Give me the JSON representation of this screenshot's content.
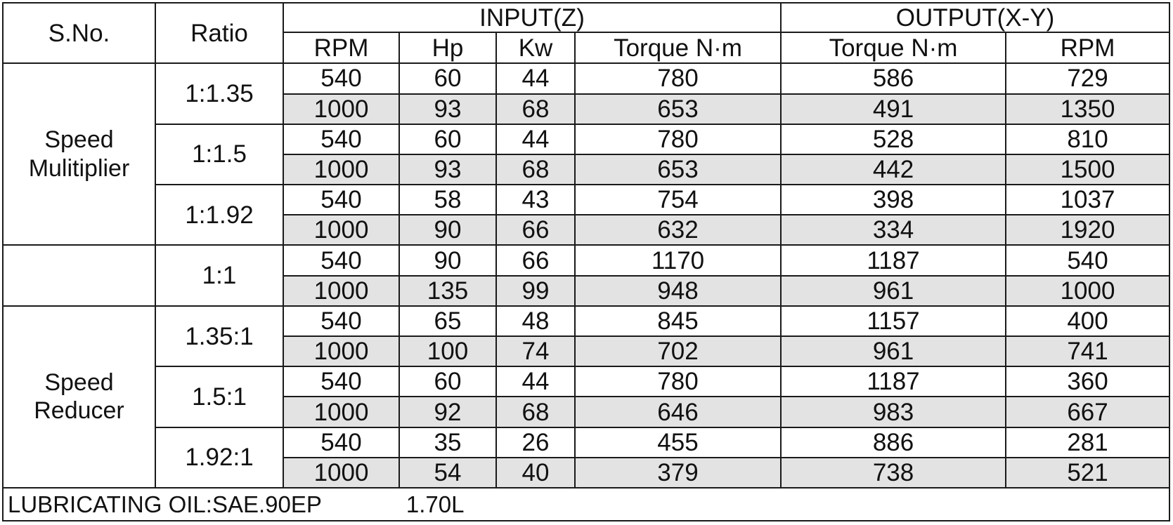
{
  "headers": {
    "sno": "S.No.",
    "ratio": "Ratio",
    "input_group": "INPUT(Z)",
    "output_group": "OUTPUT(X-Y)",
    "input_rpm": "RPM",
    "input_hp": "Hp",
    "input_kw": "Kw",
    "input_torque": "Torque N·m",
    "output_torque": "Torque N·m",
    "output_rpm": "RPM"
  },
  "groups": [
    {
      "line1": "Speed",
      "line2": "Mulitiplier",
      "ratios": [
        {
          "ratio": "1:1.35",
          "rows": [
            {
              "rpm": "540",
              "hp": "60",
              "kw": "44",
              "torque_in": "780",
              "torque_out": "586",
              "rpm_out": "729"
            },
            {
              "rpm": "1000",
              "hp": "93",
              "kw": "68",
              "torque_in": "653",
              "torque_out": "491",
              "rpm_out": "1350"
            }
          ]
        },
        {
          "ratio": "1:1.5",
          "rows": [
            {
              "rpm": "540",
              "hp": "60",
              "kw": "44",
              "torque_in": "780",
              "torque_out": "528",
              "rpm_out": "810"
            },
            {
              "rpm": "1000",
              "hp": "93",
              "kw": "68",
              "torque_in": "653",
              "torque_out": "442",
              "rpm_out": "1500"
            }
          ]
        },
        {
          "ratio": "1:1.92",
          "rows": [
            {
              "rpm": "540",
              "hp": "58",
              "kw": "43",
              "torque_in": "754",
              "torque_out": "398",
              "rpm_out": "1037"
            },
            {
              "rpm": "1000",
              "hp": "90",
              "kw": "66",
              "torque_in": "632",
              "torque_out": "334",
              "rpm_out": "1920"
            }
          ]
        }
      ]
    },
    {
      "line1": "",
      "line2": "",
      "ratios": [
        {
          "ratio": "1:1",
          "rows": [
            {
              "rpm": "540",
              "hp": "90",
              "kw": "66",
              "torque_in": "1170",
              "torque_out": "1187",
              "rpm_out": "540"
            },
            {
              "rpm": "1000",
              "hp": "135",
              "kw": "99",
              "torque_in": "948",
              "torque_out": "961",
              "rpm_out": "1000"
            }
          ]
        }
      ]
    },
    {
      "line1": "Speed",
      "line2": "Reducer",
      "ratios": [
        {
          "ratio": "1.35:1",
          "rows": [
            {
              "rpm": "540",
              "hp": "65",
              "kw": "48",
              "torque_in": "845",
              "torque_out": "1157",
              "rpm_out": "400"
            },
            {
              "rpm": "1000",
              "hp": "100",
              "kw": "74",
              "torque_in": "702",
              "torque_out": "961",
              "rpm_out": "741"
            }
          ]
        },
        {
          "ratio": "1.5:1",
          "rows": [
            {
              "rpm": "540",
              "hp": "60",
              "kw": "44",
              "torque_in": "780",
              "torque_out": "1187",
              "rpm_out": "360"
            },
            {
              "rpm": "1000",
              "hp": "92",
              "kw": "68",
              "torque_in": "646",
              "torque_out": "983",
              "rpm_out": "667"
            }
          ]
        },
        {
          "ratio": "1.92:1",
          "rows": [
            {
              "rpm": "540",
              "hp": "35",
              "kw": "26",
              "torque_in": "455",
              "torque_out": "886",
              "rpm_out": "281"
            },
            {
              "rpm": "1000",
              "hp": "54",
              "kw": "40",
              "torque_in": "379",
              "torque_out": "738",
              "rpm_out": "521"
            }
          ]
        }
      ]
    }
  ],
  "footer": {
    "oil_label": "LUBRICATING OIL:SAE.90EP",
    "oil_volume": "1.70L"
  },
  "colors": {
    "shaded_row": "#e3e3e3",
    "border": "#1a1a1a"
  }
}
